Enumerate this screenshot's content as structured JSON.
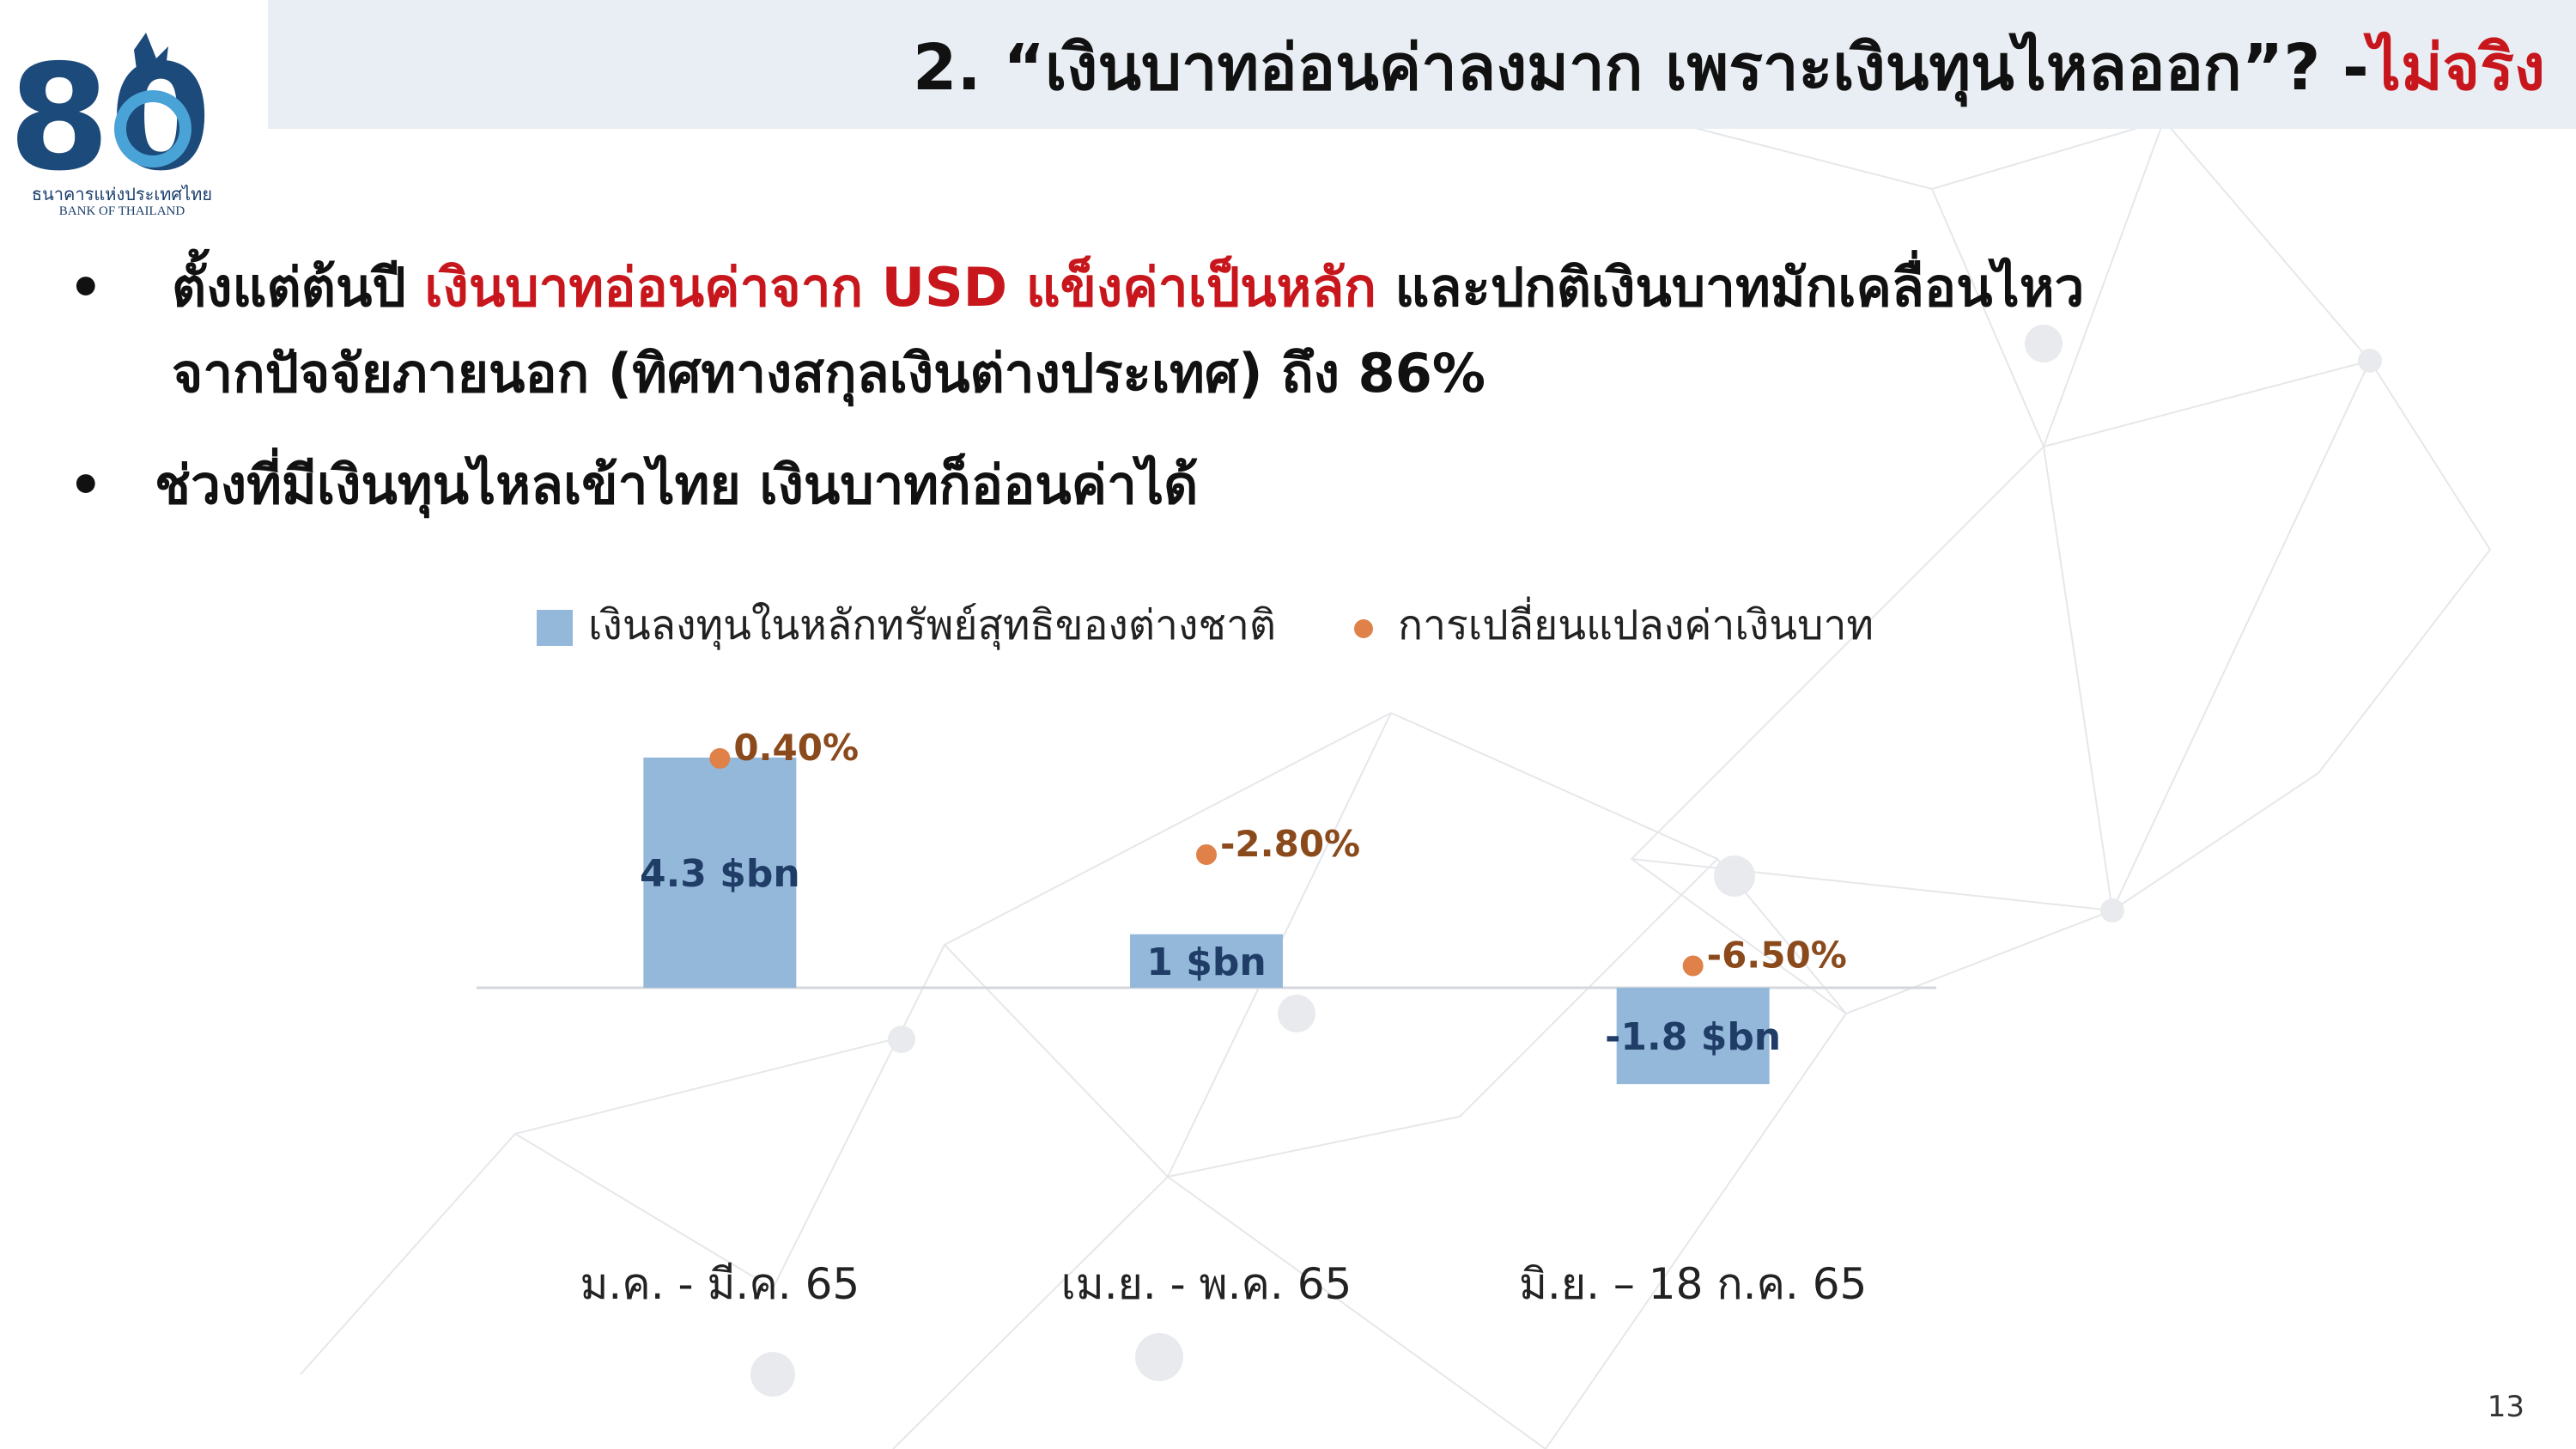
{
  "header": {
    "title_main": "2. “เงินบาทอ่อนค่าลงมาก เพราะเงินทุนไหลออก”? - ",
    "title_highlight": "ไม่จริง"
  },
  "logo": {
    "number": "80",
    "name_th": "ธนาคารแห่งประเทศไทย",
    "name_en": "BANK OF THAILAND"
  },
  "bullets": [
    {
      "dot": "•",
      "pre": "ตั้งแต่ต้นปี ",
      "highlight": "เงินบาทอ่อนค่าจาก USD แข็งค่าเป็นหลัก",
      "post": " และปกติเงินบาทมักเคลื่อนไหว",
      "line2": "จากปัจจัยภายนอก (ทิศทางสกุลเงินต่างประเทศ) ถึง 86%"
    },
    {
      "dot": "•",
      "text": "ช่วงที่มีเงินทุนไหลเข้าไทย เงินบาทก็อ่อนค่าได้"
    }
  ],
  "chart_data": {
    "type": "bar",
    "categories": [
      "ม.ค. - มี.ค. 65",
      "เม.ย. - พ.ค. 65",
      "มิ.ย. – 18 ก.ค. 65"
    ],
    "series": [
      {
        "name": "เงินลงทุนในหลักทรัพย์สุทธิของต่างชาติ",
        "kind": "bar",
        "values": [
          4.3,
          1,
          -1.8
        ],
        "labels": [
          "4.3 $bn",
          "1 $bn",
          "-1.8 $bn"
        ],
        "color": "#94b8d9"
      },
      {
        "name": "การเปลี่ยนแปลงค่าเงินบาท",
        "kind": "scatter",
        "values": [
          0.4,
          -2.8,
          -6.5
        ],
        "labels": [
          "0.40%",
          "-2.80%",
          "-6.50%"
        ],
        "color": "#e0814a"
      }
    ],
    "legend_position": "top",
    "grid": false,
    "bar_axis_range": [
      -2.5,
      5.5
    ],
    "marker_axis_range": [
      -8,
      2
    ]
  },
  "colors": {
    "highlight_red": "#c8161d",
    "bar_label": "#1f3d66",
    "marker_label": "#8b4a1c",
    "header_bg": "#e9eef4"
  },
  "page_number": "13"
}
